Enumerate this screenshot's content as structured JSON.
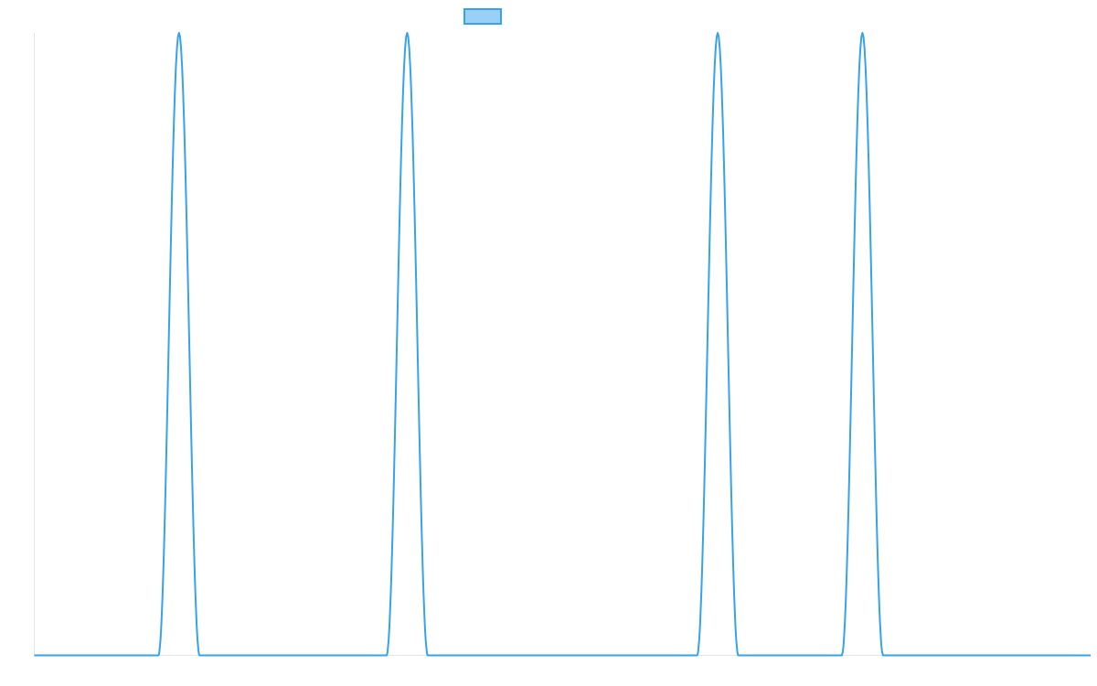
{
  "chart_data": {
    "type": "line",
    "title": "",
    "xlabel": "",
    "ylabel": "",
    "grid": false,
    "legend": {
      "placement": "top-center",
      "label": ""
    },
    "series": [
      {
        "color": "#36a2eb",
        "fill": "#9ad0f5",
        "pulses": [
          {
            "start": 117.5,
            "peak": 137.0,
            "end": 156.5
          },
          {
            "start": 333.5,
            "peak": 353.0,
            "end": 372.5
          },
          {
            "start": 627.5,
            "peak": 647.0,
            "end": 666.5
          },
          {
            "start": 764.5,
            "peak": 784.0,
            "end": 803.5
          }
        ],
        "baseline": 0,
        "peak_value": 1
      }
    ],
    "xlim": [
      0,
      1000
    ],
    "ylim": [
      0,
      1
    ]
  }
}
